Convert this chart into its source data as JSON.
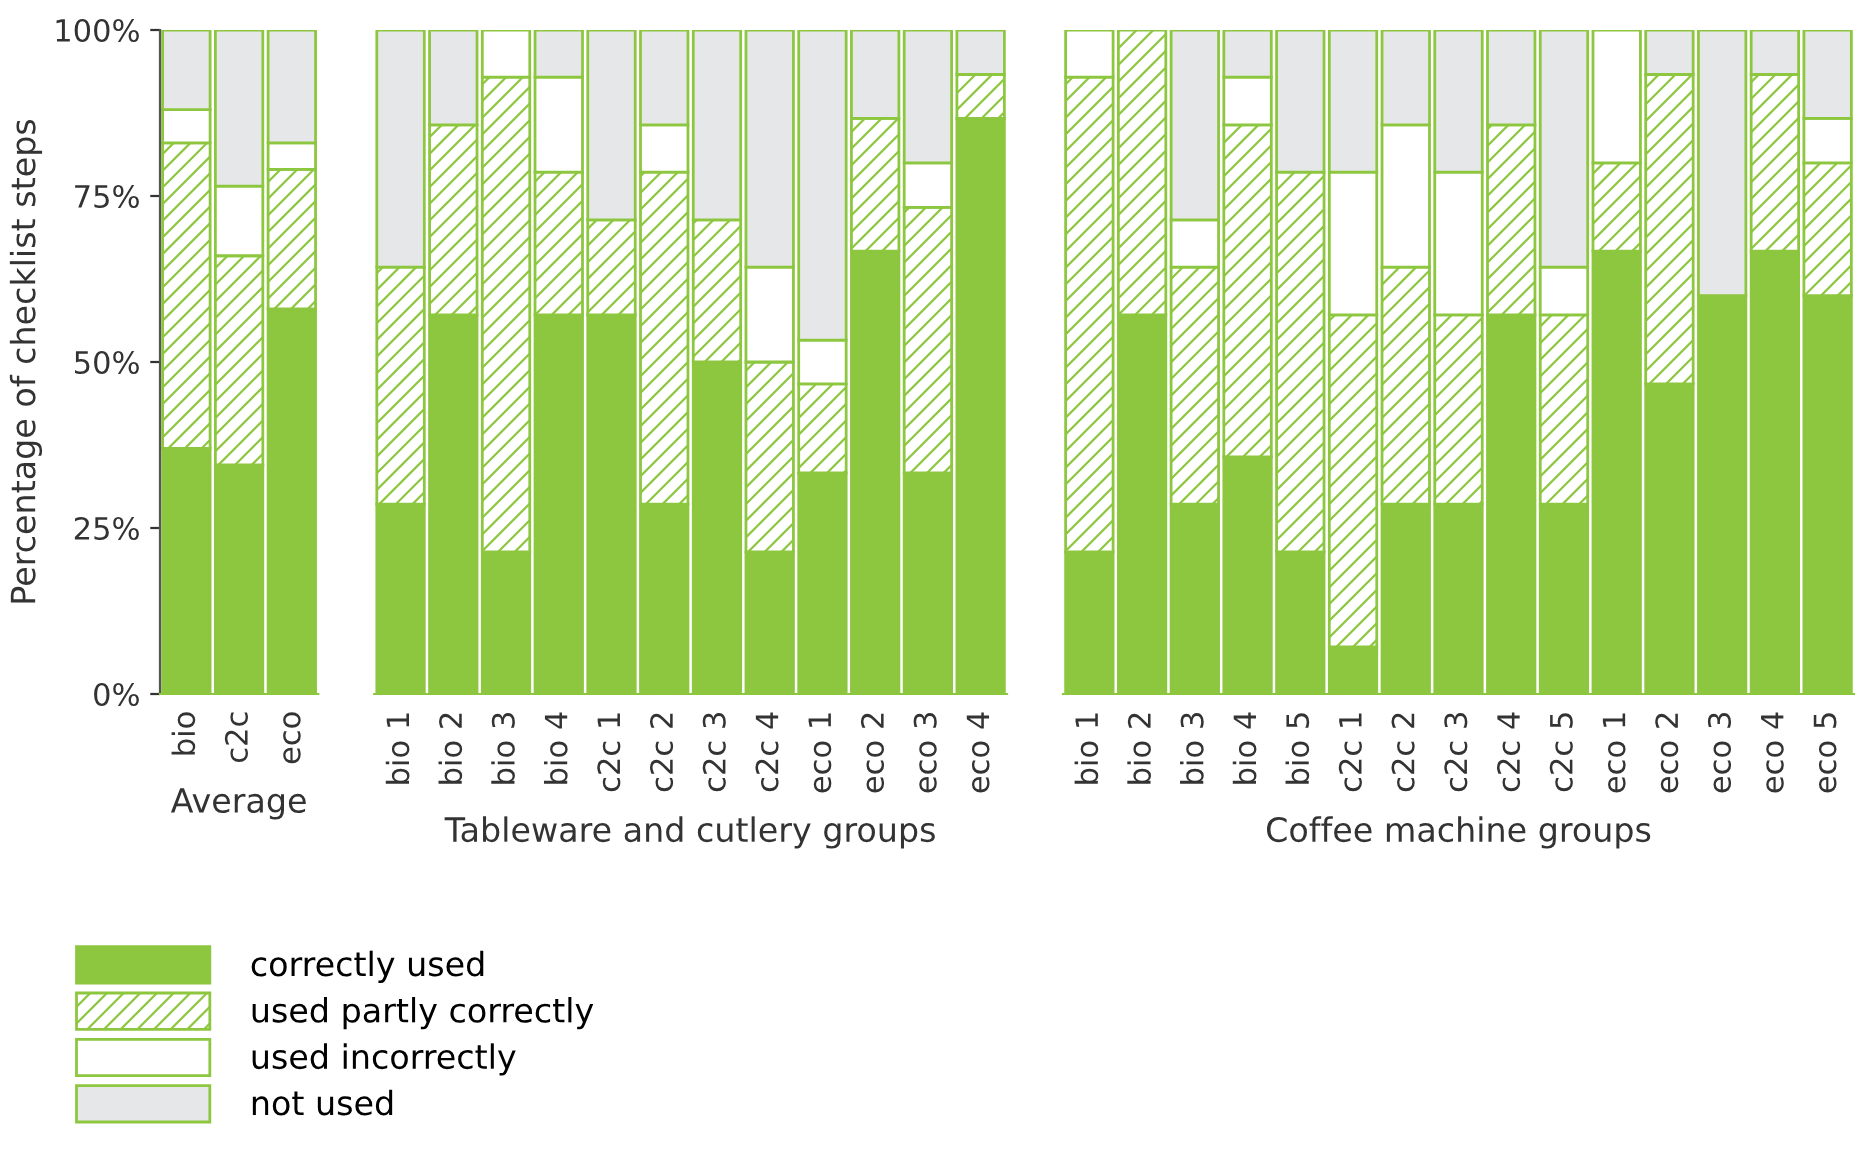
{
  "chart_data": [
    {
      "type": "bar",
      "stacked": true,
      "xlabel": "Average",
      "ylabel": "Percentage of checklist steps",
      "categories": [
        "bio",
        "c2c",
        "eco"
      ],
      "ylim": [
        0,
        100
      ],
      "yticks": [
        {
          "value": 0,
          "label": "0%"
        },
        {
          "value": 25,
          "label": "25%"
        },
        {
          "value": 50,
          "label": "50%"
        },
        {
          "value": 75,
          "label": "75%"
        },
        {
          "value": 100,
          "label": "100%"
        }
      ],
      "grid": false,
      "legend": "bottom",
      "series": [
        {
          "name": "correctly used",
          "color": "#8dc63f",
          "values": [
            37,
            34.5,
            58
          ]
        },
        {
          "name": "used partly correctly",
          "color": "#8dc63f",
          "values": [
            46,
            31.5,
            21
          ]
        },
        {
          "name": "used incorrectly",
          "color": "#ffffff",
          "values": [
            5,
            10.5,
            4
          ]
        },
        {
          "name": "not used",
          "color": "#e6e7e8",
          "values": [
            12,
            23.5,
            17
          ]
        }
      ]
    },
    {
      "type": "bar",
      "stacked": true,
      "xlabel": "Tableware and cutlery groups",
      "categories": [
        "bio 1",
        "bio 2",
        "bio 3",
        "bio 4",
        "c2c 1",
        "c2c 2",
        "c2c 3",
        "c2c 4",
        "eco 1",
        "eco 2",
        "eco 3",
        "eco 4"
      ],
      "ylim": [
        0,
        100
      ],
      "tick_labels": "x",
      "grid": false,
      "series": [
        {
          "color": "#8dc63f",
          "values": [
            28.6,
            57.1,
            21.4,
            57.1,
            57.1,
            28.6,
            50,
            21.4,
            33.3,
            66.7,
            33.3,
            86.7
          ]
        },
        {
          "color": "#8dc63f",
          "values": [
            35.7,
            28.6,
            71.5,
            21.5,
            14.3,
            50,
            21.4,
            28.6,
            13.4,
            20,
            40,
            6.6
          ]
        },
        {
          "color": "#ffffff",
          "values": [
            0,
            0,
            7.1,
            14.3,
            0,
            7.1,
            0,
            14.3,
            6.6,
            0,
            6.7,
            0
          ]
        },
        {
          "color": "#e6e7e8",
          "values": [
            35.7,
            14.3,
            0,
            7.1,
            28.6,
            14.3,
            28.6,
            35.7,
            46.7,
            13.3,
            20,
            6.7
          ]
        }
      ]
    },
    {
      "type": "bar",
      "stacked": true,
      "xlabel": "Coffee machine groups",
      "categories": [
        "bio 1",
        "bio 2",
        "bio 3",
        "bio 4",
        "bio 5",
        "c2c 1",
        "c2c 2",
        "c2c 3",
        "c2c 4",
        "c2c 5",
        "eco 1",
        "eco 2",
        "eco 3",
        "eco 4",
        "eco 5"
      ],
      "ylim": [
        0,
        100
      ],
      "tick_labels": "x",
      "grid": false,
      "series": [
        {
          "color": "#8dc63f",
          "values": [
            21.4,
            57.1,
            28.6,
            35.7,
            21.4,
            7.1,
            28.6,
            28.6,
            57.1,
            28.6,
            66.7,
            46.7,
            60,
            66.7,
            60
          ]
        },
        {
          "color": "#8dc63f",
          "values": [
            71.5,
            42.9,
            35.7,
            50,
            57.2,
            50,
            35.7,
            28.5,
            28.6,
            28.5,
            13.3,
            46.6,
            0,
            26.6,
            20
          ]
        },
        {
          "color": "#ffffff",
          "values": [
            7.1,
            0,
            7.1,
            7.2,
            0,
            21.5,
            21.4,
            21.5,
            0,
            7.2,
            20,
            0,
            0,
            0,
            6.7
          ]
        },
        {
          "color": "#e6e7e8",
          "values": [
            0,
            0,
            28.6,
            7.1,
            21.4,
            21.4,
            14.3,
            21.4,
            14.3,
            35.7,
            0,
            6.7,
            40,
            6.7,
            13.3
          ]
        }
      ]
    }
  ]
}
